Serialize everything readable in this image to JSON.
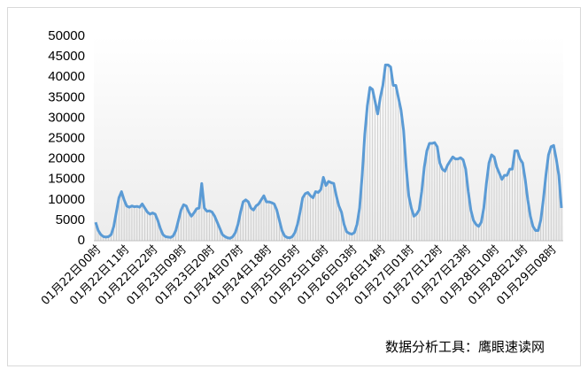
{
  "chart_data": {
    "type": "line",
    "annotation": "数据分析工具：鹰眼速读网",
    "color": "#5b9bd5",
    "fill_color": "#c8c8c8",
    "ylim": [
      0,
      50000
    ],
    "yticks": [
      0,
      5000,
      10000,
      15000,
      20000,
      25000,
      30000,
      35000,
      40000,
      45000,
      50000
    ],
    "categories": [
      "01月22日00时",
      null,
      null,
      null,
      null,
      null,
      null,
      null,
      null,
      null,
      null,
      "01月22日11时",
      null,
      null,
      null,
      null,
      null,
      null,
      null,
      null,
      null,
      null,
      "01月22日22时",
      null,
      null,
      null,
      null,
      null,
      null,
      null,
      null,
      null,
      null,
      "01月23日09时",
      null,
      null,
      null,
      null,
      null,
      null,
      null,
      null,
      null,
      null,
      "01月23日20时",
      null,
      null,
      null,
      null,
      null,
      null,
      null,
      null,
      null,
      null,
      "01月24日07时",
      null,
      null,
      null,
      null,
      null,
      null,
      null,
      null,
      null,
      null,
      "01月24日18时",
      null,
      null,
      null,
      null,
      null,
      null,
      null,
      null,
      null,
      null,
      "01月25日05时",
      null,
      null,
      null,
      null,
      null,
      null,
      null,
      null,
      null,
      null,
      "01月25日16时",
      null,
      null,
      null,
      null,
      null,
      null,
      null,
      null,
      null,
      null,
      "01月26日03时",
      null,
      null,
      null,
      null,
      null,
      null,
      null,
      null,
      null,
      null,
      "01月26日14时",
      null,
      null,
      null,
      null,
      null,
      null,
      null,
      null,
      null,
      null,
      "01月27日01时",
      null,
      null,
      null,
      null,
      null,
      null,
      null,
      null,
      null,
      null,
      "01月27日12时",
      null,
      null,
      null,
      null,
      null,
      null,
      null,
      null,
      null,
      null,
      "01月27日23时",
      null,
      null,
      null,
      null,
      null,
      null,
      null,
      null,
      null,
      null,
      "01月28日10时",
      null,
      null,
      null,
      null,
      null,
      null,
      null,
      null,
      null,
      null,
      "01月28日21时",
      null,
      null,
      null,
      null,
      null,
      null,
      null,
      null,
      null,
      null,
      "01月29日08时",
      null,
      null,
      null,
      null
    ],
    "values": [
      4500,
      2500,
      1500,
      1000,
      900,
      1000,
      1500,
      3500,
      7000,
      10500,
      12000,
      10000,
      8500,
      8200,
      8500,
      8300,
      8400,
      8200,
      9000,
      8000,
      7000,
      6500,
      6800,
      6500,
      5000,
      3000,
      1500,
      1000,
      900,
      800,
      1200,
      2500,
      5000,
      7500,
      8800,
      8500,
      7000,
      6000,
      6800,
      7800,
      8000,
      14000,
      8000,
      7200,
      7300,
      7000,
      6000,
      4500,
      3000,
      1500,
      1000,
      700,
      600,
      1000,
      2000,
      4000,
      7000,
      9500,
      10000,
      9500,
      8000,
      7500,
      8500,
      9000,
      10000,
      11000,
      9500,
      9500,
      9300,
      9000,
      7500,
      5000,
      2500,
      1200,
      800,
      700,
      1000,
      2000,
      4000,
      7000,
      10500,
      11500,
      11800,
      11000,
      10500,
      12000,
      11800,
      12500,
      15500,
      13500,
      14500,
      14200,
      14000,
      11000,
      8500,
      7000,
      4000,
      2200,
      1800,
      1600,
      2000,
      4000,
      8000,
      16000,
      26000,
      33000,
      37500,
      37000,
      34000,
      31000,
      35000,
      38000,
      43000,
      43000,
      42500,
      38000,
      38000,
      35000,
      32000,
      27000,
      18000,
      11000,
      8000,
      6000,
      6500,
      7500,
      12000,
      18000,
      22000,
      23800,
      23800,
      24000,
      23000,
      19000,
      17500,
      17000,
      18500,
      19500,
      20500,
      20000,
      20000,
      20300,
      19800,
      17500,
      12000,
      7500,
      5000,
      4000,
      3500,
      4500,
      8000,
      14000,
      19000,
      21000,
      20500,
      18000,
      16500,
      15000,
      16000,
      16000,
      17500,
      17500,
      22000,
      22000,
      20000,
      19000,
      15000,
      10000,
      6000,
      3500,
      2500,
      2500,
      5000,
      10000,
      16000,
      21000,
      23000,
      23300,
      20000,
      16000,
      8000
    ]
  }
}
